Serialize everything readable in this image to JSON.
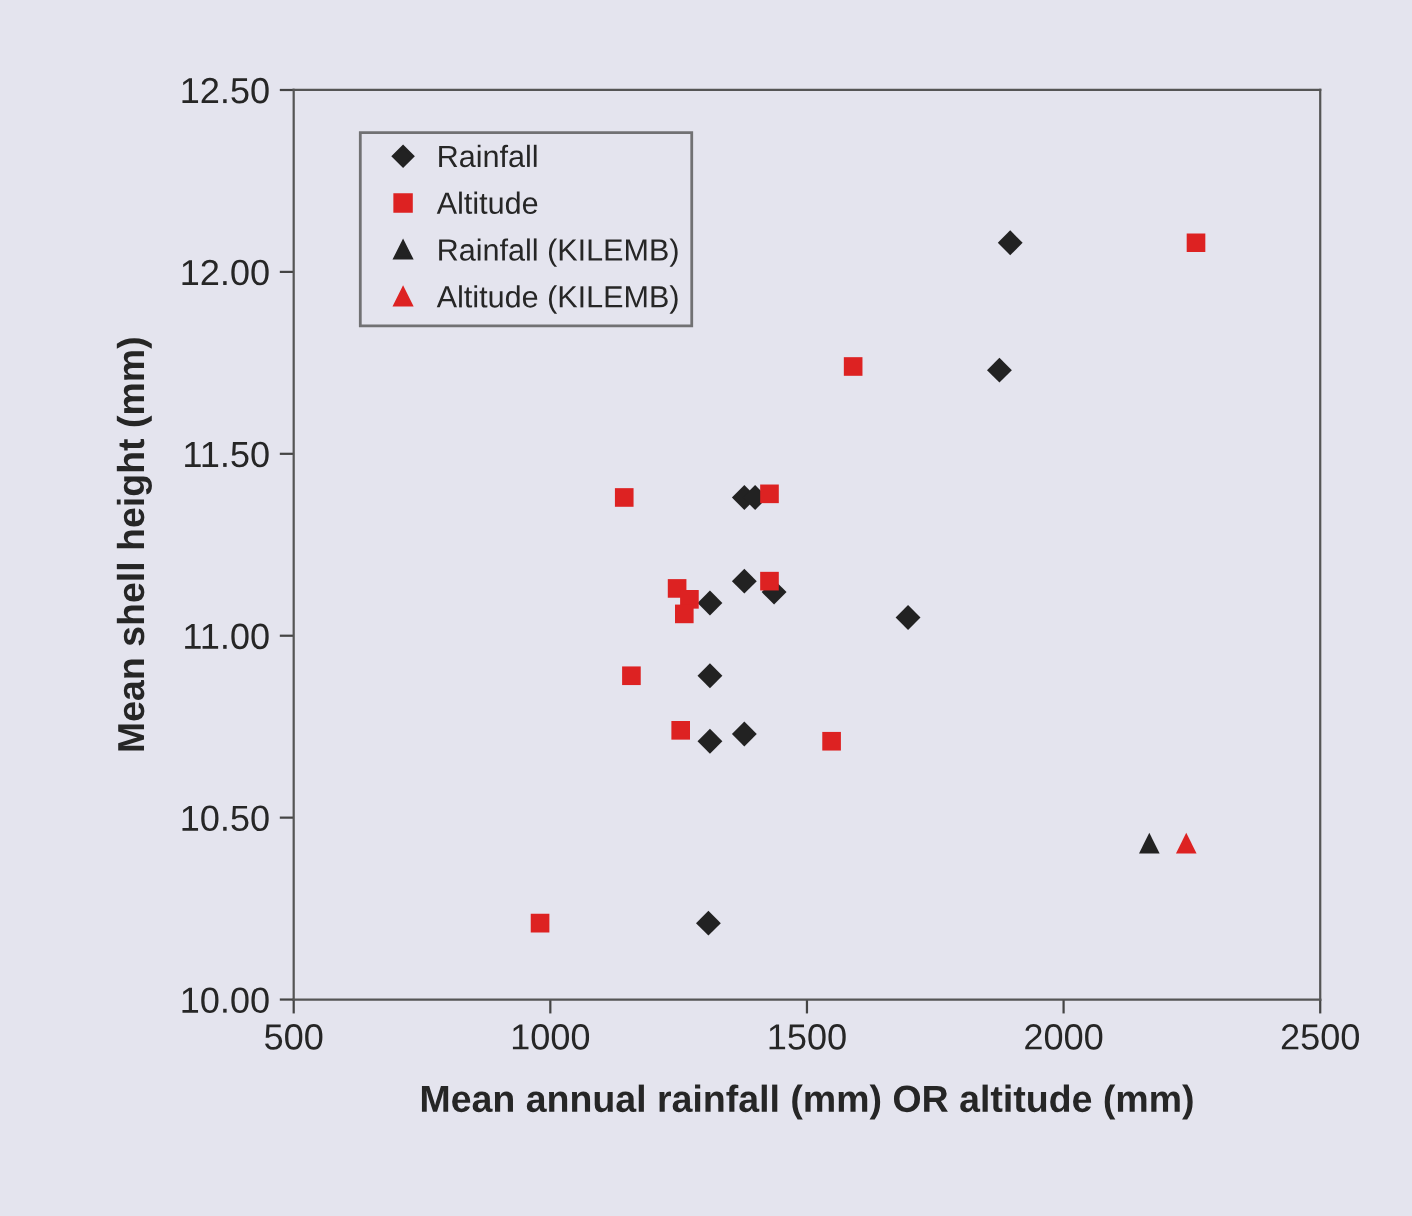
{
  "chart_data": {
    "type": "scatter",
    "xlabel": "Mean annual rainfall (mm) OR altitude (mm)",
    "ylabel": "Mean shell height (mm)",
    "xlim": [
      500,
      2500
    ],
    "xticks": [
      500,
      1000,
      1500,
      2000,
      2500
    ],
    "ylim": [
      10.0,
      12.5
    ],
    "yticks": [
      {
        "value": 10.0,
        "label": "10.00"
      },
      {
        "value": 10.5,
        "label": "10.50"
      },
      {
        "value": 11.0,
        "label": "11.00"
      },
      {
        "value": 11.5,
        "label": "11.50"
      },
      {
        "value": 12.0,
        "label": "12.00"
      },
      {
        "value": 12.5,
        "label": "12.50"
      }
    ],
    "grid": false,
    "legend": "top left",
    "series": [
      {
        "name": "Rainfall",
        "color": "#222222",
        "marker": "diamond",
        "x": [
          1896,
          1875,
          1378,
          1399,
          1378,
          1436,
          1311,
          1697,
          1311,
          1378,
          1311,
          1308
        ],
        "values": [
          12.08,
          11.73,
          11.38,
          11.38,
          11.15,
          11.12,
          11.09,
          11.05,
          10.89,
          10.73,
          10.71,
          10.21
        ]
      },
      {
        "name": "Altitude",
        "color": "#dd2222",
        "marker": "square",
        "x": [
          2258,
          1590,
          1144,
          1427,
          1247,
          1271,
          1261,
          1427,
          1158,
          1254,
          1548,
          980
        ],
        "values": [
          12.08,
          11.74,
          11.38,
          11.39,
          11.13,
          11.1,
          11.06,
          11.15,
          10.89,
          10.74,
          10.71,
          10.21
        ]
      },
      {
        "name": "Rainfall (KILEMB)",
        "color": "#222222",
        "marker": "triangle",
        "x": [
          2167
        ],
        "values": [
          10.43
        ]
      },
      {
        "name": "Altitude (KILEMB)",
        "color": "#dd2222",
        "marker": "triangle",
        "x": [
          2239
        ],
        "values": [
          10.43
        ]
      }
    ]
  }
}
